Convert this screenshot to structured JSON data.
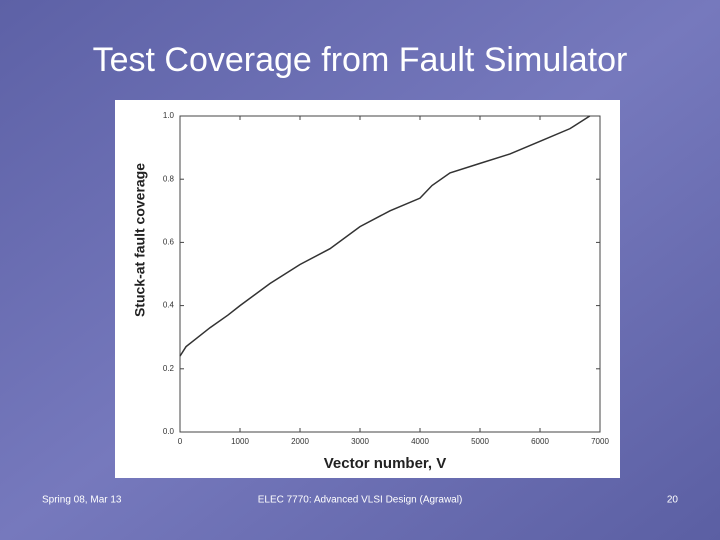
{
  "chart_data": {
    "type": "line",
    "title": "Test Coverage from Fault Simulator",
    "x_label": "Vector number, V",
    "y_label": "Stuck-at fault coverage",
    "x": [
      0,
      100,
      300,
      500,
      800,
      1000,
      1500,
      2000,
      2500,
      3000,
      3500,
      4000,
      4200,
      4500,
      5000,
      5500,
      6000,
      6500,
      6830
    ],
    "series": [
      {
        "color": "#333333",
        "values": [
          0.24,
          0.27,
          0.3,
          0.33,
          0.37,
          0.4,
          0.47,
          0.53,
          0.58,
          0.65,
          0.7,
          0.74,
          0.78,
          0.82,
          0.85,
          0.88,
          0.92,
          0.96,
          1.0
        ]
      }
    ],
    "xlim": [
      0,
      7000
    ],
    "xticks": [
      0,
      1000,
      2000,
      3000,
      4000,
      5000,
      6000,
      7000
    ],
    "ylim": [
      0,
      1
    ],
    "yticks": [
      {
        "value": 0,
        "label": "0.0"
      },
      0.2,
      0.4,
      0.6,
      0.8,
      {
        "value": 1,
        "label": "1.0"
      }
    ]
  },
  "footer": {
    "left": "Spring 08, Mar 13",
    "center": "ELEC 7770: Advanced VLSI Design (Agrawal)",
    "page": "20"
  }
}
